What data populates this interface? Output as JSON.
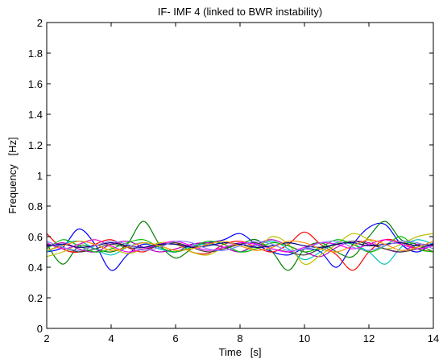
{
  "chart_data": {
    "type": "line",
    "title": "IF- IMF 4 (linked to BWR instability)",
    "xlabel": "Time   [s]",
    "ylabel": "Frequency   [Hz]",
    "xlim": [
      2,
      14
    ],
    "ylim": [
      0,
      2
    ],
    "xticks": [
      "2",
      "4",
      "6",
      "8",
      "10",
      "12",
      "14"
    ],
    "yticks": [
      "0",
      "0.2",
      "0.4",
      "0.6",
      "0.8",
      "1",
      "1.2",
      "1.4",
      "1.6",
      "1.8",
      "2"
    ],
    "grid": false,
    "legend": "none",
    "x": [
      2,
      2.5,
      3,
      3.5,
      4,
      4.5,
      5,
      5.5,
      6,
      6.5,
      7,
      7.5,
      8,
      8.5,
      9,
      9.5,
      10,
      10.5,
      11,
      11.5,
      12,
      12.5,
      13,
      13.5,
      14
    ],
    "series": [
      {
        "color": "#0000ff",
        "values": [
          0.5,
          0.53,
          0.65,
          0.55,
          0.38,
          0.48,
          0.55,
          0.52,
          0.5,
          0.55,
          0.56,
          0.58,
          0.62,
          0.55,
          0.5,
          0.48,
          0.52,
          0.5,
          0.4,
          0.55,
          0.66,
          0.68,
          0.55,
          0.5,
          0.56
        ]
      },
      {
        "color": "#008000",
        "values": [
          0.55,
          0.42,
          0.54,
          0.52,
          0.5,
          0.55,
          0.7,
          0.55,
          0.46,
          0.52,
          0.56,
          0.53,
          0.55,
          0.58,
          0.5,
          0.38,
          0.52,
          0.56,
          0.5,
          0.47,
          0.6,
          0.7,
          0.58,
          0.55,
          0.5
        ]
      },
      {
        "color": "#ff0000",
        "values": [
          0.62,
          0.52,
          0.5,
          0.55,
          0.58,
          0.53,
          0.5,
          0.55,
          0.56,
          0.5,
          0.49,
          0.55,
          0.57,
          0.53,
          0.5,
          0.55,
          0.63,
          0.55,
          0.48,
          0.38,
          0.5,
          0.58,
          0.56,
          0.52,
          0.5
        ]
      },
      {
        "color": "#00bfbf",
        "values": [
          0.5,
          0.55,
          0.57,
          0.52,
          0.48,
          0.53,
          0.56,
          0.52,
          0.5,
          0.54,
          0.55,
          0.53,
          0.5,
          0.54,
          0.57,
          0.52,
          0.45,
          0.5,
          0.56,
          0.55,
          0.5,
          0.42,
          0.53,
          0.58,
          0.55
        ]
      },
      {
        "color": "#bf00bf",
        "values": [
          0.53,
          0.56,
          0.52,
          0.5,
          0.55,
          0.57,
          0.53,
          0.5,
          0.52,
          0.55,
          0.56,
          0.53,
          0.5,
          0.55,
          0.58,
          0.54,
          0.5,
          0.47,
          0.53,
          0.57,
          0.56,
          0.52,
          0.5,
          0.55,
          0.54
        ]
      },
      {
        "color": "#bfbf00",
        "values": [
          0.47,
          0.5,
          0.55,
          0.58,
          0.53,
          0.49,
          0.52,
          0.56,
          0.55,
          0.5,
          0.48,
          0.53,
          0.55,
          0.52,
          0.6,
          0.55,
          0.42,
          0.48,
          0.55,
          0.62,
          0.58,
          0.52,
          0.55,
          0.6,
          0.62
        ]
      },
      {
        "color": "#404040",
        "values": [
          0.55,
          0.53,
          0.5,
          0.52,
          0.55,
          0.53,
          0.52,
          0.54,
          0.56,
          0.53,
          0.5,
          0.52,
          0.55,
          0.56,
          0.52,
          0.5,
          0.48,
          0.52,
          0.55,
          0.57,
          0.55,
          0.52,
          0.5,
          0.52,
          0.55
        ]
      },
      {
        "color": "#00c000",
        "values": [
          0.52,
          0.58,
          0.54,
          0.5,
          0.52,
          0.56,
          0.58,
          0.53,
          0.5,
          0.53,
          0.57,
          0.55,
          0.5,
          0.52,
          0.56,
          0.54,
          0.5,
          0.53,
          0.58,
          0.55,
          0.5,
          0.54,
          0.6,
          0.52,
          0.5
        ]
      },
      {
        "color": "#ff00ff",
        "values": [
          0.56,
          0.52,
          0.55,
          0.58,
          0.54,
          0.5,
          0.52,
          0.55,
          0.57,
          0.54,
          0.51,
          0.53,
          0.56,
          0.55,
          0.52,
          0.5,
          0.53,
          0.56,
          0.55,
          0.52,
          0.55,
          0.58,
          0.55,
          0.52,
          0.54
        ]
      },
      {
        "color": "#000080",
        "values": [
          0.54,
          0.55,
          0.53,
          0.54,
          0.56,
          0.54,
          0.53,
          0.55,
          0.55,
          0.53,
          0.54,
          0.56,
          0.55,
          0.53,
          0.54,
          0.56,
          0.54,
          0.53,
          0.55,
          0.56,
          0.54,
          0.55,
          0.56,
          0.54,
          0.55
        ]
      },
      {
        "color": "#ff8c00",
        "values": [
          0.51,
          0.54,
          0.57,
          0.55,
          0.51,
          0.53,
          0.56,
          0.54,
          0.51,
          0.52,
          0.55,
          0.57,
          0.54,
          0.51,
          0.53,
          0.57,
          0.56,
          0.52,
          0.5,
          0.54,
          0.58,
          0.55,
          0.51,
          0.53,
          0.57
        ]
      },
      {
        "color": "#8080ff",
        "values": [
          0.57,
          0.53,
          0.51,
          0.54,
          0.57,
          0.55,
          0.51,
          0.53,
          0.57,
          0.56,
          0.52,
          0.51,
          0.54,
          0.57,
          0.55,
          0.51,
          0.52,
          0.56,
          0.57,
          0.53,
          0.51,
          0.54,
          0.57,
          0.56,
          0.52
        ]
      }
    ]
  }
}
